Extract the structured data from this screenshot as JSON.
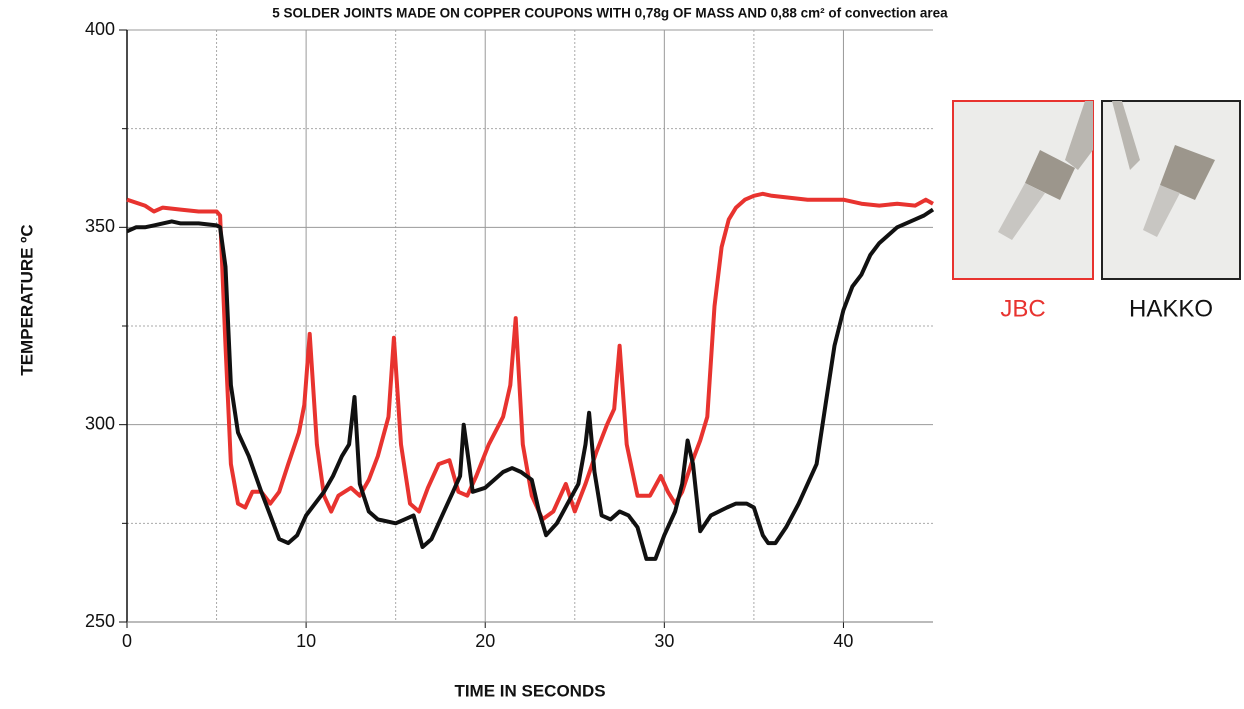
{
  "chart_data": {
    "type": "line",
    "title": "5 SOLDER JOINTS MADE ON COPPER COUPONS WITH 0,78g OF MASS AND 0,88 cm² of convection area",
    "x_label": "TIME IN SECONDS",
    "y_label": "TEMPERATURE ºC",
    "xlim": [
      0,
      45
    ],
    "ylim": [
      250,
      400
    ],
    "xticks": [
      0,
      10,
      20,
      30,
      40
    ],
    "yticks": [
      250,
      300,
      350,
      400
    ],
    "xminor": [
      5,
      15,
      25,
      35
    ],
    "yminor": [
      275,
      325,
      375
    ],
    "grid": true,
    "legend": "right",
    "series": [
      {
        "name": "JBC",
        "color": "#e8332f",
        "x": [
          0,
          1,
          1.5,
          2,
          3,
          4,
          5,
          5.2,
          5.5,
          5.8,
          6.2,
          6.6,
          7,
          7.5,
          8,
          8.5,
          9,
          9.6,
          9.9,
          10.2,
          10.6,
          11,
          11.4,
          11.8,
          12.5,
          13,
          13.5,
          14,
          14.6,
          14.9,
          15.3,
          15.8,
          16.3,
          16.8,
          17.4,
          18,
          18.5,
          19,
          19.5,
          20.2,
          21,
          21.4,
          21.7,
          22.1,
          22.6,
          23.2,
          23.8,
          24.5,
          25,
          25.6,
          26.2,
          26.8,
          27.2,
          27.5,
          27.9,
          28.5,
          29.2,
          29.8,
          30.2,
          30.6,
          31,
          31.5,
          32,
          32.4,
          32.8,
          33.2,
          33.6,
          34,
          34.5,
          35,
          35.5,
          36,
          37,
          38,
          39,
          40,
          41,
          42,
          43,
          44,
          44.6,
          45
        ],
        "values": [
          357,
          355.5,
          354,
          355,
          354.5,
          354,
          354,
          353,
          320,
          290,
          280,
          279,
          283,
          283,
          280,
          283,
          290,
          298,
          305,
          323,
          295,
          282,
          278,
          282,
          284,
          282,
          286,
          292,
          302,
          322,
          295,
          280,
          278,
          284,
          290,
          291,
          283,
          282,
          287,
          295,
          302,
          310,
          327,
          295,
          282,
          276,
          278,
          285,
          278,
          285,
          293,
          300,
          304,
          320,
          295,
          282,
          282,
          287,
          283,
          280,
          283,
          290,
          296,
          302,
          330,
          345,
          352,
          355,
          357,
          358,
          358.5,
          358,
          357.5,
          357,
          357,
          357,
          356,
          355.5,
          356,
          355.5,
          357,
          356
        ]
      },
      {
        "name": "HAKKO",
        "color": "#111111",
        "x": [
          0,
          0.5,
          1,
          1.5,
          2,
          2.5,
          3,
          4,
          5,
          5.2,
          5.5,
          5.8,
          6.2,
          6.8,
          7.5,
          8,
          8.5,
          9,
          9.5,
          10,
          11,
          11.5,
          12,
          12.4,
          12.7,
          13,
          13.5,
          14,
          15,
          15.5,
          16,
          16.5,
          17,
          17.6,
          18.2,
          18.6,
          18.8,
          19.1,
          19.3,
          20,
          21,
          21.5,
          22,
          22.6,
          23,
          23.4,
          24,
          24.6,
          25.2,
          25.6,
          25.8,
          26.1,
          26.5,
          27,
          27.5,
          28,
          28.5,
          29,
          29.5,
          30,
          30.6,
          31,
          31.3,
          31.6,
          32,
          32.6,
          33.5,
          34,
          34.6,
          35,
          35.5,
          35.8,
          36.2,
          36.8,
          37.5,
          38.5,
          39,
          39.5,
          40,
          40.5,
          41,
          41.5,
          42,
          42.5,
          43,
          44,
          44.5,
          45
        ],
        "values": [
          349,
          350,
          350,
          350.5,
          351,
          351.5,
          351,
          351,
          350.5,
          350,
          340,
          310,
          298,
          292,
          283,
          277,
          271,
          270,
          272,
          277,
          283,
          287,
          292,
          295,
          307,
          285,
          278,
          276,
          275,
          276,
          277,
          269,
          271,
          277,
          283,
          287,
          300,
          290,
          283,
          284,
          288,
          289,
          288,
          286,
          278,
          272,
          275,
          280,
          285,
          295,
          303,
          288,
          277,
          276,
          278,
          277,
          274,
          266,
          266,
          272,
          278,
          285,
          296,
          290,
          273,
          277,
          279,
          280,
          280,
          279,
          272,
          270,
          270,
          274,
          280,
          290,
          305,
          320,
          329,
          335,
          338,
          343,
          346,
          348,
          350,
          352,
          353,
          354.5
        ]
      }
    ]
  }
}
